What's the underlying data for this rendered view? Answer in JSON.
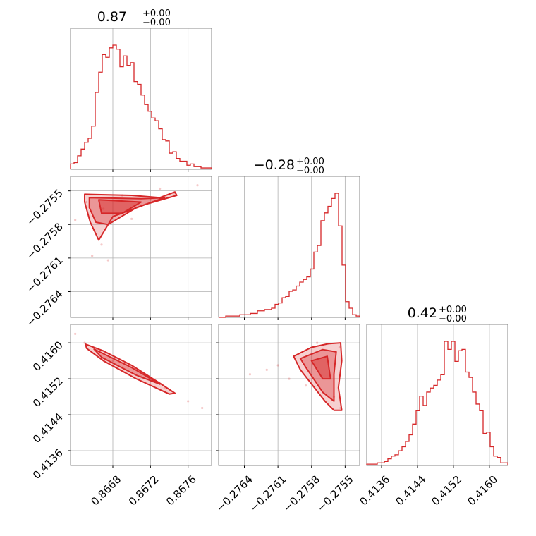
{
  "chart_data": {
    "type": "corner",
    "color": "#d62728",
    "grid": true,
    "parameters": [
      {
        "range": [
          0.86635,
          0.86785
        ]
      },
      {
        "range": [
          -0.27663,
          -0.27537
        ]
      },
      {
        "range": [
          0.41327,
          0.41641
        ]
      }
    ],
    "titles": [
      {
        "value": "0.87",
        "upper": "+0.00",
        "lower": "−0.00"
      },
      {
        "value": "−0.28",
        "upper": "+0.00",
        "lower": "−0.00"
      },
      {
        "value": "0.42",
        "upper": "+0.00",
        "lower": "−0.00"
      }
    ],
    "ticks": [
      {
        "values": [
          0.8668,
          0.8672,
          0.8676
        ],
        "labels": [
          "0.8668",
          "0.8672",
          "0.8676"
        ]
      },
      {
        "values": [
          -0.2764,
          -0.2761,
          -0.2758,
          -0.2755
        ],
        "labels": [
          "−0.2764",
          "−0.2761",
          "−0.2758",
          "−0.2755"
        ]
      },
      {
        "values": [
          0.4136,
          0.4144,
          0.4152,
          0.416
        ],
        "labels": [
          "0.4136",
          "0.4144",
          "0.4152",
          "0.4160"
        ]
      }
    ],
    "histograms": [
      {
        "param": 0,
        "bins": 40,
        "counts": [
          0.04,
          0.05,
          0.1,
          0.15,
          0.2,
          0.23,
          0.32,
          0.57,
          0.72,
          0.85,
          0.83,
          0.9,
          0.92,
          0.89,
          0.76,
          0.84,
          0.77,
          0.79,
          0.65,
          0.63,
          0.55,
          0.48,
          0.43,
          0.38,
          0.36,
          0.3,
          0.22,
          0.21,
          0.12,
          0.13,
          0.08,
          0.06,
          0.06,
          0.03,
          0.04,
          0.02,
          0.02,
          0.01,
          0.01,
          0.01
        ]
      },
      {
        "param": 1,
        "bins": 40,
        "counts": [
          0.0,
          0.0,
          0.01,
          0.01,
          0.01,
          0.01,
          0.02,
          0.02,
          0.02,
          0.03,
          0.03,
          0.05,
          0.05,
          0.06,
          0.06,
          0.07,
          0.1,
          0.11,
          0.15,
          0.16,
          0.2,
          0.21,
          0.24,
          0.27,
          0.29,
          0.31,
          0.37,
          0.5,
          0.55,
          0.74,
          0.8,
          0.85,
          0.91,
          0.95,
          0.7,
          0.4,
          0.12,
          0.07,
          0.02,
          0.01
        ]
      },
      {
        "param": 2,
        "bins": 40,
        "counts": [
          0.01,
          0.01,
          0.01,
          0.02,
          0.02,
          0.03,
          0.05,
          0.07,
          0.08,
          0.11,
          0.14,
          0.18,
          0.23,
          0.31,
          0.41,
          0.52,
          0.45,
          0.55,
          0.58,
          0.6,
          0.64,
          0.68,
          0.93,
          0.87,
          0.93,
          0.78,
          0.86,
          0.87,
          0.7,
          0.66,
          0.55,
          0.46,
          0.41,
          0.24,
          0.25,
          0.14,
          0.07,
          0.06,
          0.02,
          0.02
        ]
      }
    ],
    "pairs": [
      {
        "x_param": 0,
        "y_param": 1,
        "contours": [
          [
            [
              0.8665,
              -0.27553
            ],
            [
              0.867,
              -0.27554
            ],
            [
              0.8673,
              -0.27556
            ],
            [
              0.86746,
              -0.27551
            ],
            [
              0.86748,
              -0.27554
            ],
            [
              0.86715,
              -0.27562
            ],
            [
              0.8668,
              -0.27573
            ],
            [
              0.86665,
              -0.27594
            ],
            [
              0.86656,
              -0.27578
            ],
            [
              0.8665,
              -0.2756
            ]
          ],
          [
            [
              0.86655,
              -0.27556
            ],
            [
              0.8671,
              -0.27557
            ],
            [
              0.86735,
              -0.27556
            ],
            [
              0.86705,
              -0.27565
            ],
            [
              0.86675,
              -0.2758
            ],
            [
              0.86662,
              -0.27578
            ],
            [
              0.86655,
              -0.27565
            ]
          ],
          [
            [
              0.86665,
              -0.27558
            ],
            [
              0.8671,
              -0.2756
            ],
            [
              0.8669,
              -0.2757
            ],
            [
              0.86668,
              -0.2757
            ]
          ]
        ],
        "points": [
          [
            0.86652,
            -0.2756
          ],
          [
            0.8667,
            -0.27566
          ],
          [
            0.8669,
            -0.27554
          ],
          [
            0.8672,
            -0.27557
          ],
          [
            0.86745,
            -0.27552
          ],
          [
            0.8666,
            -0.27585
          ],
          [
            0.86668,
            -0.27598
          ],
          [
            0.86675,
            -0.27612
          ],
          [
            0.867,
            -0.27575
          ],
          [
            0.8673,
            -0.27548
          ],
          [
            0.8677,
            -0.27545
          ],
          [
            0.8664,
            -0.27576
          ],
          [
            0.86658,
            -0.27608
          ]
        ]
      },
      {
        "x_param": 0,
        "y_param": 2,
        "contours": [
          [
            [
              0.86651,
              0.41597
            ],
            [
              0.8667,
              0.41582
            ],
            [
              0.867,
              0.4155
            ],
            [
              0.8673,
              0.4151
            ],
            [
              0.86746,
              0.41488
            ],
            [
              0.8674,
              0.41486
            ],
            [
              0.86705,
              0.4152
            ],
            [
              0.8667,
              0.4156
            ],
            [
              0.86652,
              0.41588
            ]
          ],
          [
            [
              0.8666,
              0.41586
            ],
            [
              0.867,
              0.41545
            ],
            [
              0.8673,
              0.41508
            ],
            [
              0.86705,
              0.41528
            ],
            [
              0.86668,
              0.41568
            ]
          ]
        ],
        "points": [
          [
            0.8664,
            0.4162
          ],
          [
            0.8665,
            0.416
          ],
          [
            0.8668,
            0.4156
          ],
          [
            0.8672,
            0.41515
          ],
          [
            0.8676,
            0.4147
          ],
          [
            0.86775,
            0.41455
          ],
          [
            0.8669,
            0.41545
          ],
          [
            0.8671,
            0.41525
          ],
          [
            0.86735,
            0.415
          ]
        ]
      },
      {
        "x_param": 1,
        "y_param": 2,
        "contours": [
          [
            [
              -0.27596,
              0.4157
            ],
            [
              -0.2758,
              0.4159
            ],
            [
              -0.27565,
              0.41598
            ],
            [
              -0.27554,
              0.416
            ],
            [
              -0.27553,
              0.4156
            ],
            [
              -0.27556,
              0.415
            ],
            [
              -0.27553,
              0.4145
            ],
            [
              -0.2756,
              0.4145
            ],
            [
              -0.27568,
              0.4147
            ],
            [
              -0.2759,
              0.4154
            ]
          ],
          [
            [
              -0.2759,
              0.41565
            ],
            [
              -0.2757,
              0.41585
            ],
            [
              -0.27558,
              0.4158
            ],
            [
              -0.2756,
              0.4153
            ],
            [
              -0.2756,
              0.4147
            ],
            [
              -0.2757,
              0.4149
            ],
            [
              -0.27585,
              0.41545
            ]
          ],
          [
            [
              -0.2758,
              0.4156
            ],
            [
              -0.27566,
              0.4157
            ],
            [
              -0.27563,
              0.4152
            ],
            [
              -0.2757,
              0.4152
            ]
          ]
        ],
        "points": [
          [
            -0.2761,
            0.4155
          ],
          [
            -0.2762,
            0.4154
          ],
          [
            -0.276,
            0.4152
          ],
          [
            -0.27575,
            0.416
          ],
          [
            -0.27554,
            0.41455
          ],
          [
            -0.2756,
            0.4148
          ],
          [
            -0.27585,
            0.41505
          ],
          [
            -0.27555,
            0.4159
          ],
          [
            -0.27635,
            0.4153
          ]
        ]
      }
    ]
  }
}
